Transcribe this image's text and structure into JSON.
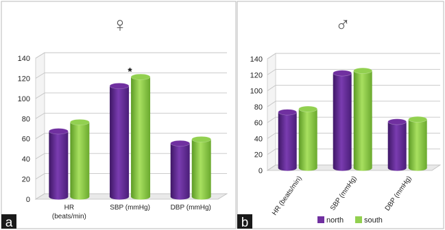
{
  "chart_data": [
    {
      "panel": "a",
      "title": "♀",
      "type": "bar",
      "style": "3d-cylinder",
      "categories": [
        "HR (beats/min)",
        "SBP (mmHg)",
        "DBP (mmHg)"
      ],
      "category_lines": [
        [
          "HR",
          "(beats/min)"
        ],
        [
          "SBP (mmHg)"
        ],
        [
          "DBP (mmHg)"
        ]
      ],
      "series": [
        {
          "name": "north",
          "color": "#7030A0",
          "values": [
            65,
            110,
            53
          ]
        },
        {
          "name": "south",
          "color": "#92D050",
          "values": [
            74,
            119,
            57
          ]
        }
      ],
      "annotations": [
        {
          "category": "SBP (mmHg)",
          "text": "*"
        }
      ],
      "ylim": [
        0,
        140
      ],
      "yticks": [
        "0",
        "20",
        "40",
        "60",
        "80",
        "100",
        "120",
        "140"
      ],
      "grid": true,
      "legend": "none"
    },
    {
      "panel": "b",
      "title": "♂",
      "type": "bar",
      "style": "3d-cylinder",
      "categories": [
        "HR (beats/min)",
        "SBP (mmHg)",
        "DBP (mmHg)"
      ],
      "series": [
        {
          "name": "north",
          "color": "#7030A0",
          "values": [
            70,
            119,
            58
          ]
        },
        {
          "name": "south",
          "color": "#92D050",
          "values": [
            74,
            122,
            61
          ]
        }
      ],
      "ylim": [
        0,
        140
      ],
      "yticks": [
        "0",
        "20",
        "40",
        "60",
        "80",
        "100",
        "120",
        "140"
      ],
      "grid": true,
      "legend": "bottom"
    }
  ]
}
